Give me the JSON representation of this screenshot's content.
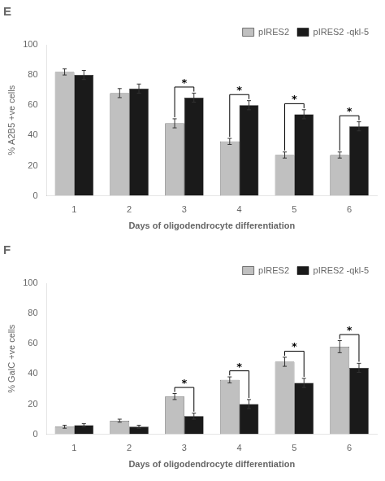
{
  "chart_data": [
    {
      "type": "bar",
      "title": "E",
      "categories": [
        "1",
        "2",
        "3",
        "4",
        "5",
        "6"
      ],
      "series": [
        {
          "name": "pIRES2",
          "color": "#C0C0C0",
          "values": [
            82,
            68,
            48,
            36,
            27,
            27
          ],
          "errors": [
            2,
            3,
            3,
            2,
            2,
            2
          ]
        },
        {
          "name": "pIRES2 -qkl-5",
          "color": "#1a1a1a",
          "values": [
            80,
            71,
            65,
            60,
            54,
            46
          ],
          "errors": [
            3,
            3,
            3,
            3,
            3,
            3
          ]
        }
      ],
      "xlabel": "Days of oligodendrocyte differentiation",
      "ylabel": "% A2B5 +ve cells",
      "ylim": [
        0,
        100
      ],
      "yticks": [
        0,
        20,
        40,
        60,
        80,
        100
      ],
      "annotations": [
        {
          "x": "3",
          "text": "*"
        },
        {
          "x": "4",
          "text": "*"
        },
        {
          "x": "5",
          "text": "*"
        },
        {
          "x": "6",
          "text": "*"
        }
      ],
      "legend": "upper right",
      "grid": false
    },
    {
      "type": "bar",
      "title": "F",
      "categories": [
        "1",
        "2",
        "3",
        "4",
        "5",
        "6"
      ],
      "series": [
        {
          "name": "pIRES2",
          "color": "#C0C0C0",
          "values": [
            5,
            9,
            25,
            36,
            48,
            58
          ],
          "errors": [
            1,
            1,
            2,
            2,
            3,
            4
          ]
        },
        {
          "name": "pIRES2 -qkl-5",
          "color": "#1a1a1a",
          "values": [
            6,
            5,
            12,
            20,
            34,
            44
          ],
          "errors": [
            1,
            1,
            2,
            3,
            3,
            3
          ]
        }
      ],
      "xlabel": "Days of oligodendrocyte differentiation",
      "ylabel": "% GalC +ve cells",
      "ylim": [
        0,
        100
      ],
      "yticks": [
        0,
        20,
        40,
        60,
        80,
        100
      ],
      "annotations": [
        {
          "x": "3",
          "text": "*"
        },
        {
          "x": "4",
          "text": "*"
        },
        {
          "x": "5",
          "text": "*"
        },
        {
          "x": "6",
          "text": "*"
        }
      ],
      "legend": "upper right",
      "grid": false
    }
  ]
}
